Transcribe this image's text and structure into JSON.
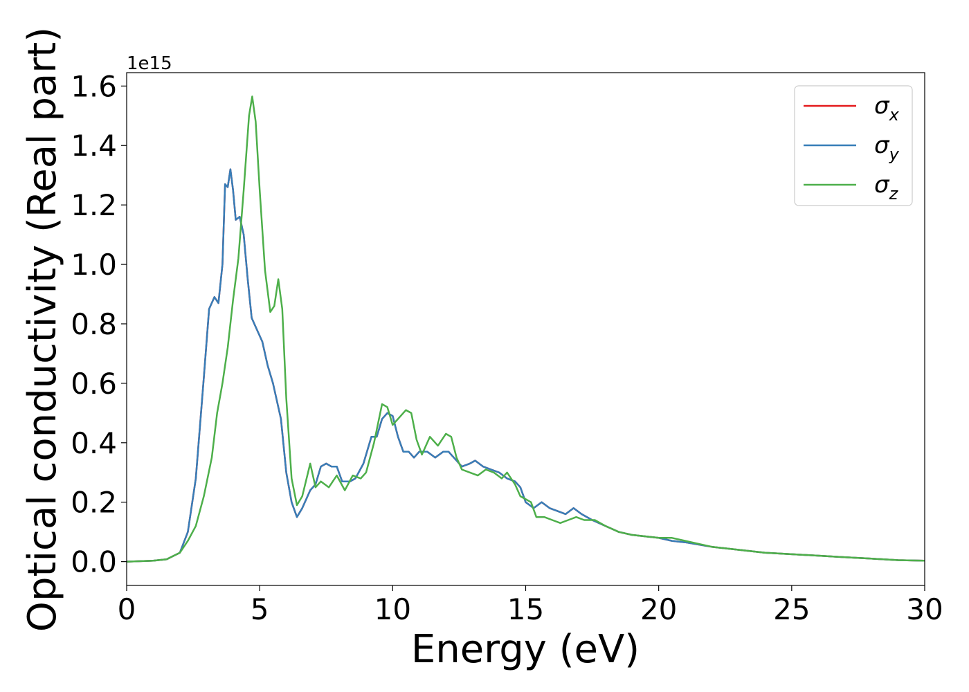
{
  "chart_data": {
    "type": "line",
    "xlabel": "Energy (eV)",
    "ylabel": "Optical conductivity (Real part)",
    "offset_text": "1e15",
    "xlim": [
      0,
      30
    ],
    "ylim": [
      -0.08,
      1.645
    ],
    "x_ticks": [
      0,
      5,
      10,
      15,
      20,
      25,
      30
    ],
    "y_ticks": [
      0.0,
      0.2,
      0.4,
      0.6,
      0.8,
      1.0,
      1.2,
      1.4,
      1.6
    ],
    "y_tick_labels": [
      "0.0",
      "0.2",
      "0.4",
      "0.6",
      "0.8",
      "1.0",
      "1.2",
      "1.4",
      "1.6"
    ],
    "grid": false,
    "legend_position": "top-right",
    "series": [
      {
        "name": "σx",
        "base": "σ",
        "sub": "x",
        "color": "#e41a1c",
        "points": [
          [
            0,
            0
          ],
          [
            1,
            0.003
          ],
          [
            1.5,
            0.008
          ],
          [
            2,
            0.03
          ],
          [
            2.3,
            0.1
          ],
          [
            2.6,
            0.28
          ],
          [
            2.9,
            0.62
          ],
          [
            3.1,
            0.85
          ],
          [
            3.3,
            0.89
          ],
          [
            3.45,
            0.87
          ],
          [
            3.6,
            1.0
          ],
          [
            3.7,
            1.27
          ],
          [
            3.8,
            1.26
          ],
          [
            3.9,
            1.32
          ],
          [
            4.0,
            1.25
          ],
          [
            4.1,
            1.15
          ],
          [
            4.25,
            1.16
          ],
          [
            4.4,
            1.1
          ],
          [
            4.55,
            0.95
          ],
          [
            4.7,
            0.82
          ],
          [
            4.9,
            0.78
          ],
          [
            5.1,
            0.74
          ],
          [
            5.3,
            0.66
          ],
          [
            5.5,
            0.6
          ],
          [
            5.8,
            0.48
          ],
          [
            6.0,
            0.3
          ],
          [
            6.2,
            0.2
          ],
          [
            6.4,
            0.15
          ],
          [
            6.6,
            0.18
          ],
          [
            6.9,
            0.24
          ],
          [
            7.1,
            0.26
          ],
          [
            7.3,
            0.32
          ],
          [
            7.5,
            0.33
          ],
          [
            7.7,
            0.32
          ],
          [
            7.9,
            0.32
          ],
          [
            8.1,
            0.27
          ],
          [
            8.4,
            0.27
          ],
          [
            8.6,
            0.28
          ],
          [
            8.9,
            0.33
          ],
          [
            9.2,
            0.42
          ],
          [
            9.4,
            0.42
          ],
          [
            9.6,
            0.48
          ],
          [
            9.8,
            0.5
          ],
          [
            10.0,
            0.49
          ],
          [
            10.2,
            0.42
          ],
          [
            10.4,
            0.37
          ],
          [
            10.6,
            0.37
          ],
          [
            10.8,
            0.35
          ],
          [
            11.0,
            0.37
          ],
          [
            11.3,
            0.37
          ],
          [
            11.6,
            0.35
          ],
          [
            11.9,
            0.37
          ],
          [
            12.1,
            0.37
          ],
          [
            12.4,
            0.34
          ],
          [
            12.6,
            0.32
          ],
          [
            12.9,
            0.33
          ],
          [
            13.1,
            0.34
          ],
          [
            13.4,
            0.32
          ],
          [
            13.7,
            0.31
          ],
          [
            14.0,
            0.3
          ],
          [
            14.3,
            0.28
          ],
          [
            14.6,
            0.27
          ],
          [
            14.8,
            0.25
          ],
          [
            15.0,
            0.2
          ],
          [
            15.3,
            0.18
          ],
          [
            15.6,
            0.2
          ],
          [
            15.9,
            0.18
          ],
          [
            16.2,
            0.17
          ],
          [
            16.5,
            0.16
          ],
          [
            16.8,
            0.18
          ],
          [
            17.1,
            0.16
          ],
          [
            17.5,
            0.14
          ],
          [
            18.0,
            0.12
          ],
          [
            18.5,
            0.1
          ],
          [
            19.0,
            0.09
          ],
          [
            19.5,
            0.085
          ],
          [
            20.0,
            0.08
          ],
          [
            20.5,
            0.07
          ],
          [
            21.0,
            0.065
          ],
          [
            22.0,
            0.05
          ],
          [
            23.0,
            0.04
          ],
          [
            24.0,
            0.03
          ],
          [
            25.0,
            0.025
          ],
          [
            26.0,
            0.02
          ],
          [
            27.0,
            0.015
          ],
          [
            28.0,
            0.01
          ],
          [
            29.0,
            0.005
          ],
          [
            30.0,
            0.003
          ]
        ]
      },
      {
        "name": "σy",
        "base": "σ",
        "sub": "y",
        "color": "#377eb8",
        "points": [
          [
            0,
            0
          ],
          [
            1,
            0.003
          ],
          [
            1.5,
            0.008
          ],
          [
            2,
            0.03
          ],
          [
            2.3,
            0.1
          ],
          [
            2.6,
            0.28
          ],
          [
            2.9,
            0.62
          ],
          [
            3.1,
            0.85
          ],
          [
            3.3,
            0.89
          ],
          [
            3.45,
            0.87
          ],
          [
            3.6,
            1.0
          ],
          [
            3.7,
            1.27
          ],
          [
            3.8,
            1.26
          ],
          [
            3.9,
            1.32
          ],
          [
            4.0,
            1.25
          ],
          [
            4.1,
            1.15
          ],
          [
            4.25,
            1.16
          ],
          [
            4.4,
            1.1
          ],
          [
            4.55,
            0.95
          ],
          [
            4.7,
            0.82
          ],
          [
            4.9,
            0.78
          ],
          [
            5.1,
            0.74
          ],
          [
            5.3,
            0.66
          ],
          [
            5.5,
            0.6
          ],
          [
            5.8,
            0.48
          ],
          [
            6.0,
            0.3
          ],
          [
            6.2,
            0.2
          ],
          [
            6.4,
            0.15
          ],
          [
            6.6,
            0.18
          ],
          [
            6.9,
            0.24
          ],
          [
            7.1,
            0.26
          ],
          [
            7.3,
            0.32
          ],
          [
            7.5,
            0.33
          ],
          [
            7.7,
            0.32
          ],
          [
            7.9,
            0.32
          ],
          [
            8.1,
            0.27
          ],
          [
            8.4,
            0.27
          ],
          [
            8.6,
            0.28
          ],
          [
            8.9,
            0.33
          ],
          [
            9.2,
            0.42
          ],
          [
            9.4,
            0.42
          ],
          [
            9.6,
            0.48
          ],
          [
            9.8,
            0.5
          ],
          [
            10.0,
            0.49
          ],
          [
            10.2,
            0.42
          ],
          [
            10.4,
            0.37
          ],
          [
            10.6,
            0.37
          ],
          [
            10.8,
            0.35
          ],
          [
            11.0,
            0.37
          ],
          [
            11.3,
            0.37
          ],
          [
            11.6,
            0.35
          ],
          [
            11.9,
            0.37
          ],
          [
            12.1,
            0.37
          ],
          [
            12.4,
            0.34
          ],
          [
            12.6,
            0.32
          ],
          [
            12.9,
            0.33
          ],
          [
            13.1,
            0.34
          ],
          [
            13.4,
            0.32
          ],
          [
            13.7,
            0.31
          ],
          [
            14.0,
            0.3
          ],
          [
            14.3,
            0.28
          ],
          [
            14.6,
            0.27
          ],
          [
            14.8,
            0.25
          ],
          [
            15.0,
            0.2
          ],
          [
            15.3,
            0.18
          ],
          [
            15.6,
            0.2
          ],
          [
            15.9,
            0.18
          ],
          [
            16.2,
            0.17
          ],
          [
            16.5,
            0.16
          ],
          [
            16.8,
            0.18
          ],
          [
            17.1,
            0.16
          ],
          [
            17.5,
            0.14
          ],
          [
            18.0,
            0.12
          ],
          [
            18.5,
            0.1
          ],
          [
            19.0,
            0.09
          ],
          [
            19.5,
            0.085
          ],
          [
            20.0,
            0.08
          ],
          [
            20.5,
            0.07
          ],
          [
            21.0,
            0.065
          ],
          [
            22.0,
            0.05
          ],
          [
            23.0,
            0.04
          ],
          [
            24.0,
            0.03
          ],
          [
            25.0,
            0.025
          ],
          [
            26.0,
            0.02
          ],
          [
            27.0,
            0.015
          ],
          [
            28.0,
            0.01
          ],
          [
            29.0,
            0.005
          ],
          [
            30.0,
            0.003
          ]
        ]
      },
      {
        "name": "σz",
        "base": "σ",
        "sub": "z",
        "color": "#4daf4a",
        "points": [
          [
            0,
            0
          ],
          [
            1,
            0.003
          ],
          [
            1.5,
            0.008
          ],
          [
            2,
            0.03
          ],
          [
            2.3,
            0.07
          ],
          [
            2.6,
            0.12
          ],
          [
            2.9,
            0.22
          ],
          [
            3.2,
            0.35
          ],
          [
            3.4,
            0.5
          ],
          [
            3.6,
            0.6
          ],
          [
            3.8,
            0.72
          ],
          [
            4.0,
            0.88
          ],
          [
            4.2,
            1.02
          ],
          [
            4.4,
            1.25
          ],
          [
            4.6,
            1.5
          ],
          [
            4.72,
            1.565
          ],
          [
            4.85,
            1.48
          ],
          [
            5.0,
            1.25
          ],
          [
            5.2,
            0.98
          ],
          [
            5.4,
            0.84
          ],
          [
            5.55,
            0.86
          ],
          [
            5.7,
            0.95
          ],
          [
            5.85,
            0.85
          ],
          [
            6.0,
            0.55
          ],
          [
            6.2,
            0.28
          ],
          [
            6.4,
            0.19
          ],
          [
            6.6,
            0.22
          ],
          [
            6.9,
            0.33
          ],
          [
            7.1,
            0.25
          ],
          [
            7.3,
            0.27
          ],
          [
            7.6,
            0.25
          ],
          [
            7.9,
            0.29
          ],
          [
            8.2,
            0.24
          ],
          [
            8.5,
            0.29
          ],
          [
            8.8,
            0.28
          ],
          [
            9.0,
            0.3
          ],
          [
            9.3,
            0.4
          ],
          [
            9.6,
            0.53
          ],
          [
            9.8,
            0.52
          ],
          [
            10.0,
            0.46
          ],
          [
            10.2,
            0.48
          ],
          [
            10.5,
            0.51
          ],
          [
            10.7,
            0.5
          ],
          [
            10.9,
            0.41
          ],
          [
            11.1,
            0.36
          ],
          [
            11.4,
            0.42
          ],
          [
            11.7,
            0.39
          ],
          [
            12.0,
            0.43
          ],
          [
            12.2,
            0.42
          ],
          [
            12.4,
            0.35
          ],
          [
            12.6,
            0.31
          ],
          [
            12.9,
            0.3
          ],
          [
            13.2,
            0.29
          ],
          [
            13.5,
            0.31
          ],
          [
            13.8,
            0.3
          ],
          [
            14.1,
            0.28
          ],
          [
            14.3,
            0.3
          ],
          [
            14.6,
            0.26
          ],
          [
            14.8,
            0.22
          ],
          [
            15.0,
            0.21
          ],
          [
            15.2,
            0.2
          ],
          [
            15.4,
            0.15
          ],
          [
            15.7,
            0.15
          ],
          [
            16.0,
            0.14
          ],
          [
            16.3,
            0.13
          ],
          [
            16.6,
            0.14
          ],
          [
            16.9,
            0.15
          ],
          [
            17.2,
            0.14
          ],
          [
            17.6,
            0.14
          ],
          [
            18.0,
            0.12
          ],
          [
            18.5,
            0.1
          ],
          [
            19.0,
            0.09
          ],
          [
            19.5,
            0.085
          ],
          [
            20.0,
            0.08
          ],
          [
            20.5,
            0.08
          ],
          [
            21.0,
            0.07
          ],
          [
            22.0,
            0.05
          ],
          [
            23.0,
            0.04
          ],
          [
            24.0,
            0.03
          ],
          [
            25.0,
            0.025
          ],
          [
            26.0,
            0.02
          ],
          [
            27.0,
            0.015
          ],
          [
            28.0,
            0.01
          ],
          [
            29.0,
            0.005
          ],
          [
            30.0,
            0.003
          ]
        ]
      }
    ]
  }
}
